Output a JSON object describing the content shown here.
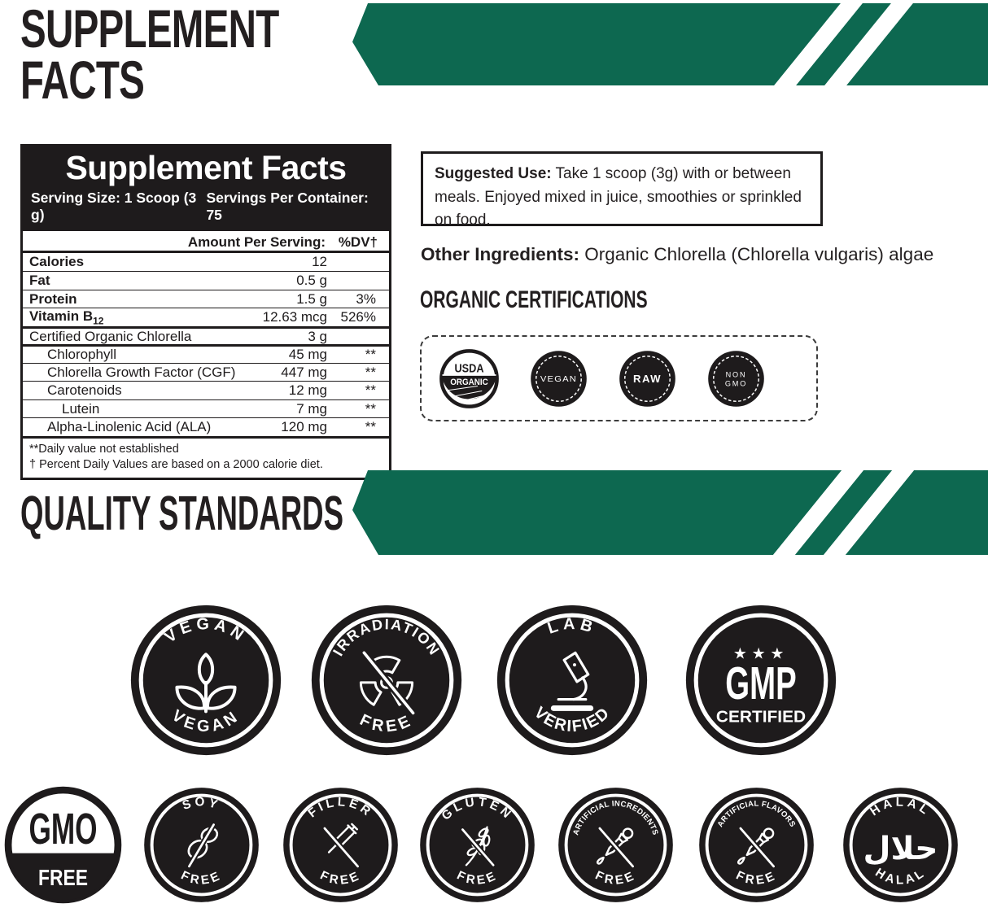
{
  "header": {
    "title_line1": "SUPPLEMENT",
    "title_line2": "FACTS"
  },
  "facts": {
    "title": "Supplement Facts",
    "serving_size": "Serving Size: 1 Scoop (3 g)",
    "servings_per_container": "Servings Per Container: 75",
    "col_amount": "Amount Per Serving:",
    "col_dv": "%DV†",
    "rows": [
      {
        "name": "Calories",
        "amount": "12",
        "dv": ""
      },
      {
        "name": "Fat",
        "amount": "0.5 g",
        "dv": ""
      },
      {
        "name": "Protein",
        "amount": "1.5 g",
        "dv": "3%"
      },
      {
        "name": "Vitamin B",
        "name_sub": "12",
        "amount": "12.63 mcg",
        "dv": "526%"
      },
      {
        "name": "Certified Organic Chlorella",
        "amount": "3 g",
        "dv": ""
      },
      {
        "name": "Chlorophyll",
        "amount": "45 mg",
        "dv": "**"
      },
      {
        "name": "Chlorella Growth Factor (CGF)",
        "amount": "447 mg",
        "dv": "**"
      },
      {
        "name": "Carotenoids",
        "amount": "12 mg",
        "dv": "**"
      },
      {
        "name": "Lutein",
        "amount": "7 mg",
        "dv": "**"
      },
      {
        "name": "Alpha-Linolenic Acid (ALA)",
        "amount": "120 mg",
        "dv": "**"
      }
    ],
    "footnote1": "**Daily value not established",
    "footnote2": "† Percent Daily Values are based on a 2000 calorie diet."
  },
  "suggested_use": {
    "label": "Suggested Use:",
    "text": " Take 1 scoop (3g) with or between meals. Enjoyed mixed in juice, smoothies or sprinkled on food."
  },
  "other_ingredients": {
    "label": "Other Ingredients:",
    "text": " Organic Chlorella (Chlorella vulgaris) algae"
  },
  "organic_certifications": {
    "heading": "ORGANIC CERTIFICATIONS",
    "badges": [
      {
        "id": "usda-organic",
        "line1": "USDA",
        "line2": "ORGANIC"
      },
      {
        "id": "vegan",
        "label": "VEGAN"
      },
      {
        "id": "raw",
        "label": "RAW"
      },
      {
        "id": "non-gmo",
        "line1": "NON",
        "line2": "GMO"
      }
    ]
  },
  "quality": {
    "heading": "QUALITY STANDARDS"
  },
  "quality_badges": {
    "row1": [
      {
        "id": "vegan",
        "top": "VEGAN",
        "bottom": "VEGAN",
        "icon": "plant-icon"
      },
      {
        "id": "irradiation-free",
        "top": "IRRADIATION",
        "bottom": "FREE",
        "icon": "radiation-icon"
      },
      {
        "id": "lab-verified",
        "top": "LAB",
        "bottom": "VERIFIED",
        "icon": "microscope-icon"
      },
      {
        "id": "gmp-certified",
        "style": "gmp",
        "stars": "★★★",
        "title": "GMP",
        "subtitle": "CERTIFIED"
      }
    ],
    "row2": [
      {
        "id": "gmo-free",
        "style": "split",
        "top": "GMO",
        "bottom": "FREE"
      },
      {
        "id": "soy-free",
        "top": "SOY",
        "bottom": "FREE",
        "icon": "soybean-icon"
      },
      {
        "id": "filler-free",
        "top": "FILLER",
        "bottom": "FREE",
        "icon": "syringe-icon"
      },
      {
        "id": "gluten-free",
        "top": "GLUTEN",
        "bottom": "FREE",
        "icon": "wheat-icon"
      },
      {
        "id": "artificial-incredients-free",
        "top": "ARTIFICIAL INCREDIENTS",
        "bottom": "FREE",
        "icon": "dropper-icon"
      },
      {
        "id": "artificial-flavors-free",
        "top": "ARTIFICIAL FLAVORS",
        "bottom": "FREE",
        "icon": "dropper-icon"
      },
      {
        "id": "halal",
        "top": "HALAL",
        "bottom": "HALAL",
        "center_text": "حلال",
        "icon": "arabic-halal-text"
      }
    ]
  },
  "colors": {
    "accent_green": "#0d6850",
    "ink_black": "#1e1b1c"
  }
}
